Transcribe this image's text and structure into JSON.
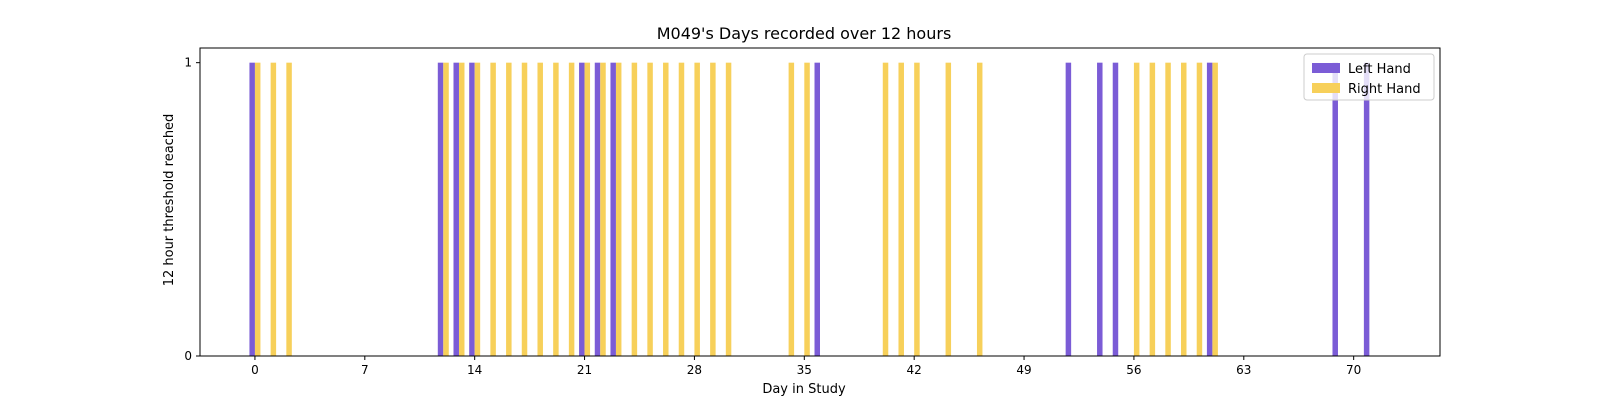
{
  "chart_data": {
    "type": "bar",
    "title": "M049's Days recorded over 12 hours",
    "xlabel": "Day in Study",
    "ylabel": "12 hour threshold reached",
    "xlim": [
      -3.5,
      75.5
    ],
    "ylim": [
      0,
      1.05
    ],
    "xticks": [
      0,
      7,
      14,
      21,
      28,
      35,
      42,
      49,
      56,
      63,
      70
    ],
    "yticks": [
      0,
      1
    ],
    "legend_position": "top-right",
    "series": [
      {
        "name": "Left Hand",
        "color": "#7b5cd6",
        "days": [
          0,
          12,
          13,
          14,
          21,
          22,
          23,
          36,
          52,
          54,
          55,
          61,
          69,
          71
        ],
        "value": 1
      },
      {
        "name": "Right Hand",
        "color": "#f7d05a",
        "days": [
          0,
          1,
          2,
          12,
          13,
          14,
          15,
          16,
          17,
          18,
          19,
          20,
          21,
          22,
          23,
          24,
          25,
          26,
          27,
          28,
          29,
          30,
          34,
          35,
          40,
          41,
          42,
          44,
          46,
          56,
          57,
          58,
          59,
          60,
          61
        ],
        "value": 1
      }
    ]
  }
}
